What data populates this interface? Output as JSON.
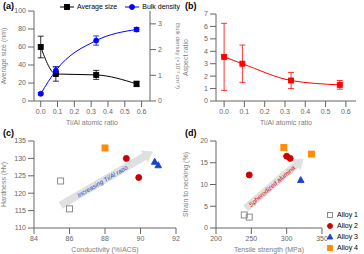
{
  "chart_data": [
    {
      "type": "line",
      "title": "(a)",
      "xlabel": "Ti/Al atomic ratio",
      "ylabel": "Average size (nm)",
      "y2label": "Bulk density (×10⁻² cm⁻³)",
      "x": [
        0.0,
        0.09,
        0.33,
        0.57
      ],
      "series": [
        {
          "name": "Average size",
          "color": "black",
          "marker": "square",
          "values": [
            60,
            30,
            29,
            19
          ],
          "errors": [
            12,
            8,
            5,
            3
          ]
        },
        {
          "name": "Bulk density",
          "color": "blue",
          "marker": "circle",
          "axis": "y2",
          "values": [
            0.28,
            1.18,
            2.35,
            2.78
          ],
          "errors": [
            0.04,
            0.15,
            0.18,
            0.08
          ]
        }
      ],
      "xlim": [
        -0.04,
        0.65
      ],
      "xticks": [
        {
          "value": 0,
          "label": "0.0"
        },
        0.1,
        0.2,
        0.3,
        0.4,
        0.5,
        0.6
      ],
      "ylim": [
        0,
        100
      ],
      "yticks": [
        0,
        20,
        40,
        60,
        80,
        100
      ],
      "y2lim": [
        0,
        3.5
      ],
      "y2ticks": [
        0,
        1,
        2,
        3
      ],
      "legend": "upper right"
    },
    {
      "type": "line",
      "title": "(b)",
      "xlabel": "Ti/Al atomic ratio",
      "ylabel": "Aspect ratio",
      "x": [
        0.0,
        0.09,
        0.33,
        0.57
      ],
      "series": [
        {
          "color": "red",
          "marker": "square",
          "values": [
            3.55,
            3.0,
            1.65,
            1.3
          ],
          "errors": [
            2.7,
            1.5,
            0.65,
            0.35
          ]
        }
      ],
      "xlim": [
        -0.04,
        0.65
      ],
      "xticks": [
        {
          "value": 0,
          "label": "0.0"
        },
        0.1,
        0.2,
        0.3,
        0.4,
        0.5,
        0.6
      ],
      "ylim": [
        0,
        7
      ],
      "yticks": [
        0,
        1,
        2,
        3,
        4,
        5,
        6,
        7
      ]
    },
    {
      "type": "scatter",
      "title": "(c)",
      "xlabel": "Conductivity (%IACS)",
      "ylabel": "Hardness (Hv)",
      "series": [
        {
          "color": "#808080",
          "marker": "open_square",
          "x": [
            85.5,
            86.0
          ],
          "values": [
            123.5,
            115.5
          ]
        },
        {
          "color": "#ff8c00",
          "marker": "square",
          "x": [
            88.0
          ],
          "values": [
            133.0
          ]
        },
        {
          "color": "#cc0000",
          "marker": "circle",
          "x": [
            89.2,
            89.9
          ],
          "values": [
            130.0,
            124.5
          ]
        },
        {
          "color": "#1a44cc",
          "marker": "triangle",
          "x": [
            90.8,
            91.0
          ],
          "values": [
            129.0,
            128.0
          ]
        }
      ],
      "annotations": [
        {
          "text": "Increasing Ti/Al ratio",
          "color": "#1a44cc",
          "x": 85.5,
          "y": 116.5,
          "dx": 5.2,
          "dy": 15.5
        }
      ],
      "xlim": [
        84,
        92
      ],
      "xticks": [
        84,
        86,
        88,
        90,
        92
      ],
      "ylim": [
        110,
        135
      ],
      "yticks": [
        110,
        115,
        120,
        125,
        130,
        135
      ]
    },
    {
      "type": "scatter",
      "title": "(d)",
      "xlabel": "Tensile strength (MPa)",
      "ylabel": "Strain to necking (%)",
      "series": [
        {
          "name": "Alloy 1",
          "color": "#808080",
          "marker": "open_square",
          "x": [
            240,
            247
          ],
          "values": [
            3.0,
            2.5
          ]
        },
        {
          "name": "Alloy 2",
          "color": "#cc0000",
          "marker": "circle",
          "x": [
            247,
            300,
            305
          ],
          "values": [
            12.2,
            16.5,
            16.0
          ]
        },
        {
          "name": "Alloy 3",
          "color": "#1a44cc",
          "marker": "triangle",
          "x": [
            320
          ],
          "values": [
            11.0
          ]
        },
        {
          "name": "Alloy 4",
          "color": "#ff8c00",
          "marker": "square",
          "x": [
            296,
            335
          ],
          "values": [
            18.5,
            17.0
          ]
        }
      ],
      "annotations": [
        {
          "text": "Spherodized alumina",
          "color": "#cc0000",
          "x": 242,
          "y": 4.5,
          "dx": 82,
          "dy": 11.5
        }
      ],
      "xlim": [
        200,
        350
      ],
      "xticks": [
        200,
        250,
        300,
        350
      ],
      "ylim": [
        0,
        20
      ],
      "yticks": [
        0,
        5,
        10,
        15,
        20
      ],
      "legend": "lower right"
    }
  ]
}
